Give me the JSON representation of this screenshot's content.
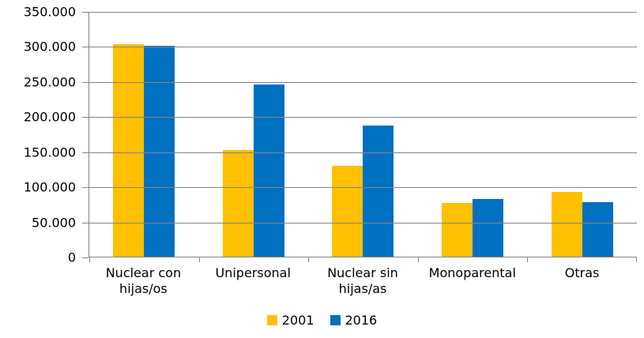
{
  "chart_data": {
    "type": "bar",
    "title": "",
    "xlabel": "",
    "ylabel": "",
    "categories": [
      "Nuclear con hijas/os",
      "Unipersonal",
      "Nuclear sin hijas/as",
      "Monoparental",
      "Otras"
    ],
    "series": [
      {
        "name": "2001",
        "color": "#FFC000",
        "values": [
          303000,
          152000,
          129000,
          77000,
          92000
        ]
      },
      {
        "name": "2016",
        "color": "#0070C0",
        "values": [
          300000,
          245000,
          187000,
          82000,
          78000
        ]
      }
    ],
    "ylim": [
      0,
      350000
    ],
    "yticks": [
      0,
      50000,
      100000,
      150000,
      200000,
      250000,
      300000,
      350000
    ],
    "ytick_labels": [
      "0",
      "50.000",
      "100.000",
      "150.000",
      "200.000",
      "250.000",
      "300.000",
      "350.000"
    ],
    "grid": true,
    "legend_position": "bottom",
    "colors": {
      "axis": "#858585",
      "grid": "#858585",
      "text": "#000000",
      "background": "#FFFFFF"
    }
  }
}
